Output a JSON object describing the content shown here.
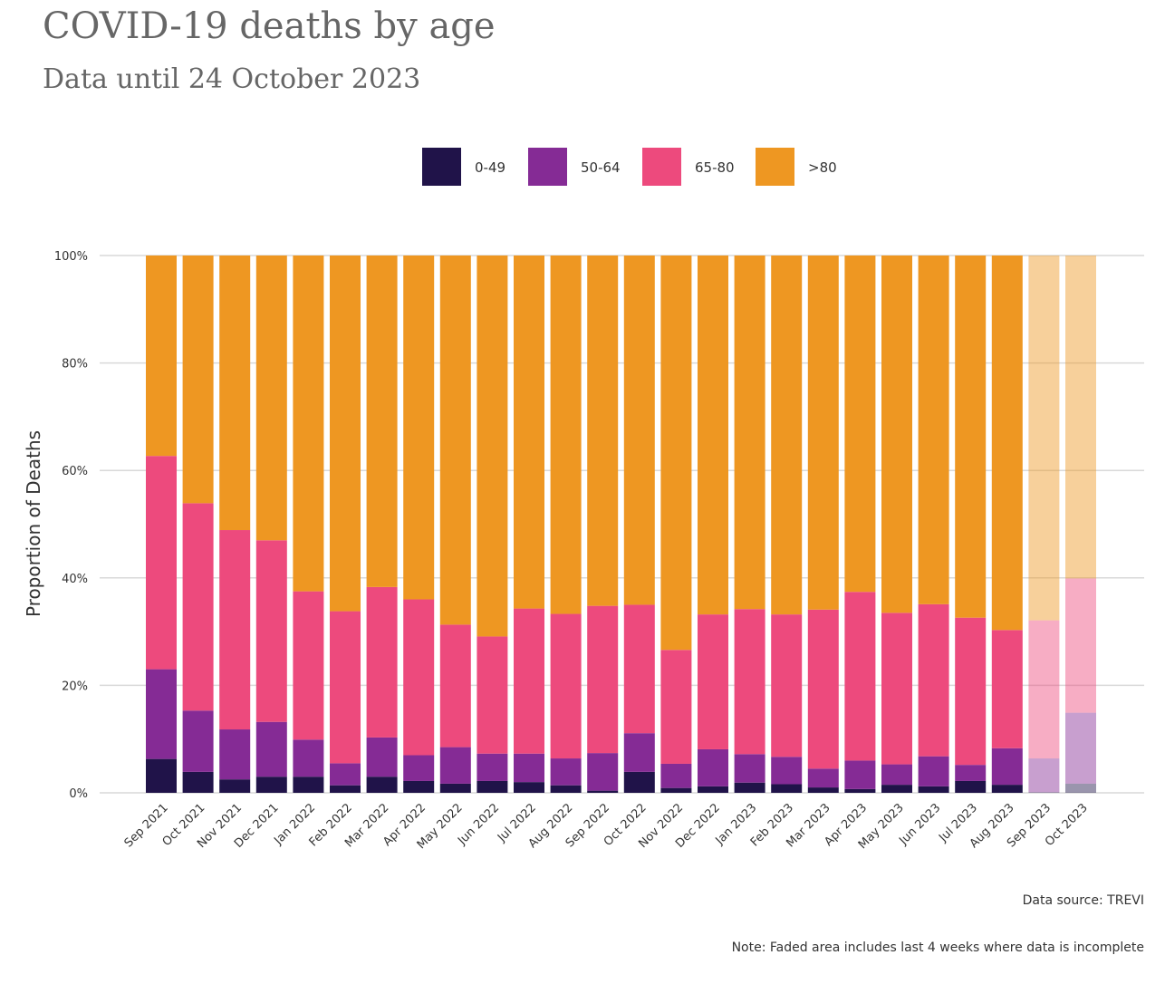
{
  "header": {
    "title": "COVID-19 deaths by age",
    "subtitle": "Data until 24 October 2023"
  },
  "colors": {
    "0-49": "#201349",
    "50-64": "#852b95",
    "65-80": "#ed4a7d",
    ">80": "#ee9722",
    "gridline": "#d9d9d9"
  },
  "chart_data": {
    "type": "bar",
    "stacked": true,
    "ylabel": "Proportion of Deaths",
    "xlabel": "",
    "ylim": [
      0,
      100
    ],
    "yticks": [
      "0%",
      "20%",
      "40%",
      "60%",
      "80%",
      "100%"
    ],
    "legend_position": "top",
    "categories": [
      "Sep 2021",
      "Oct 2021",
      "Nov 2021",
      "Dec 2021",
      "Jan 2022",
      "Feb 2022",
      "Mar 2022",
      "Apr 2022",
      "May 2022",
      "Jun 2022",
      "Jul 2022",
      "Aug 2022",
      "Sep 2022",
      "Oct 2022",
      "Nov 2022",
      "Dec 2022",
      "Jan 2023",
      "Feb 2023",
      "Mar 2023",
      "Apr 2023",
      "May 2023",
      "Jun 2023",
      "Jul 2023",
      "Aug 2023",
      "Sep 2023",
      "Oct 2023"
    ],
    "faded_categories": [
      "Sep 2023",
      "Oct 2023"
    ],
    "series": [
      {
        "name": "0-49",
        "values": [
          6.3,
          3.9,
          2.5,
          3.0,
          3.0,
          1.4,
          3.0,
          2.2,
          1.7,
          2.2,
          2.0,
          1.4,
          0.4,
          3.9,
          0.9,
          1.2,
          1.9,
          1.6,
          1.0,
          0.7,
          1.5,
          1.2,
          2.2,
          1.5,
          0.1,
          1.7
        ]
      },
      {
        "name": "50-64",
        "values": [
          16.7,
          11.4,
          9.3,
          10.2,
          6.9,
          4.1,
          7.3,
          4.8,
          6.8,
          5.1,
          5.3,
          5.0,
          7.0,
          7.2,
          4.5,
          6.9,
          5.3,
          5.1,
          3.5,
          5.3,
          3.8,
          5.6,
          3.0,
          6.8,
          6.3,
          13.2
        ]
      },
      {
        "name": "65-80",
        "values": [
          39.7,
          38.6,
          37.1,
          33.8,
          27.6,
          28.3,
          28.0,
          29.0,
          22.8,
          21.8,
          27.0,
          26.9,
          27.4,
          23.9,
          21.2,
          25.1,
          27.0,
          26.5,
          29.6,
          31.4,
          28.2,
          28.3,
          27.4,
          22.0,
          25.7,
          25.0
        ]
      },
      {
        "name": ">80",
        "values": [
          37.3,
          46.1,
          51.1,
          53.0,
          62.5,
          66.2,
          61.7,
          64.0,
          68.7,
          70.9,
          65.7,
          66.7,
          65.2,
          65.0,
          73.4,
          66.8,
          65.8,
          66.8,
          65.9,
          62.6,
          66.5,
          64.9,
          67.4,
          69.7,
          67.9,
          60.1
        ]
      }
    ]
  },
  "footer": {
    "source": "Data source: TREVI",
    "note": "Note: Faded area includes last 4 weeks where data is incomplete"
  }
}
